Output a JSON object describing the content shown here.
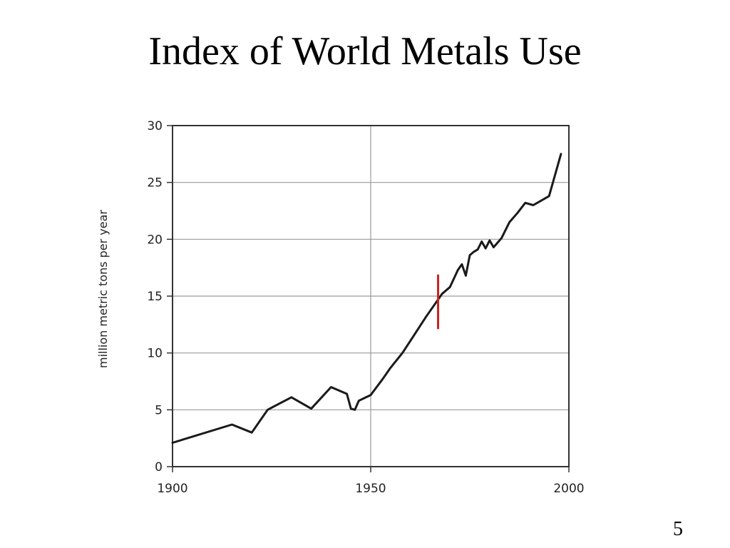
{
  "slide": {
    "title": "Index of World Metals Use",
    "page_number": "5"
  },
  "chart_data": {
    "type": "line",
    "title": "",
    "xlabel": "",
    "ylabel": "million metric tons per year",
    "xlim": [
      1900,
      2000
    ],
    "ylim": [
      0,
      30
    ],
    "x_ticks": [
      1900,
      1950,
      2000
    ],
    "y_ticks": [
      0,
      5,
      10,
      15,
      20,
      25,
      30
    ],
    "grid": true,
    "legend": "none",
    "series": [
      {
        "color": "#1a1a1a",
        "x": [
          1900,
          1915,
          1920,
          1924,
          1930,
          1935,
          1940,
          1944,
          1945,
          1946,
          1947,
          1950,
          1953,
          1955,
          1958,
          1961,
          1964,
          1966,
          1968,
          1970,
          1972,
          1973,
          1974,
          1975,
          1976,
          1977,
          1978,
          1979,
          1980,
          1981,
          1983,
          1985,
          1987,
          1989,
          1991,
          1993,
          1995,
          1998
        ],
        "y": [
          2.1,
          3.7,
          3.0,
          5.0,
          6.1,
          5.1,
          7.0,
          6.4,
          5.1,
          5.0,
          5.8,
          6.3,
          7.7,
          8.7,
          10.0,
          11.6,
          13.2,
          14.2,
          15.2,
          15.8,
          17.3,
          17.8,
          16.8,
          18.6,
          18.9,
          19.1,
          19.8,
          19.2,
          19.9,
          19.3,
          20.1,
          21.5,
          22.3,
          23.2,
          23.0,
          23.4,
          23.8,
          27.5
        ]
      }
    ],
    "annotations": [
      {
        "type": "vertical-marker",
        "x": 1967,
        "y_from": 12.1,
        "y_to": 16.9,
        "color": "#cc2222"
      }
    ]
  }
}
